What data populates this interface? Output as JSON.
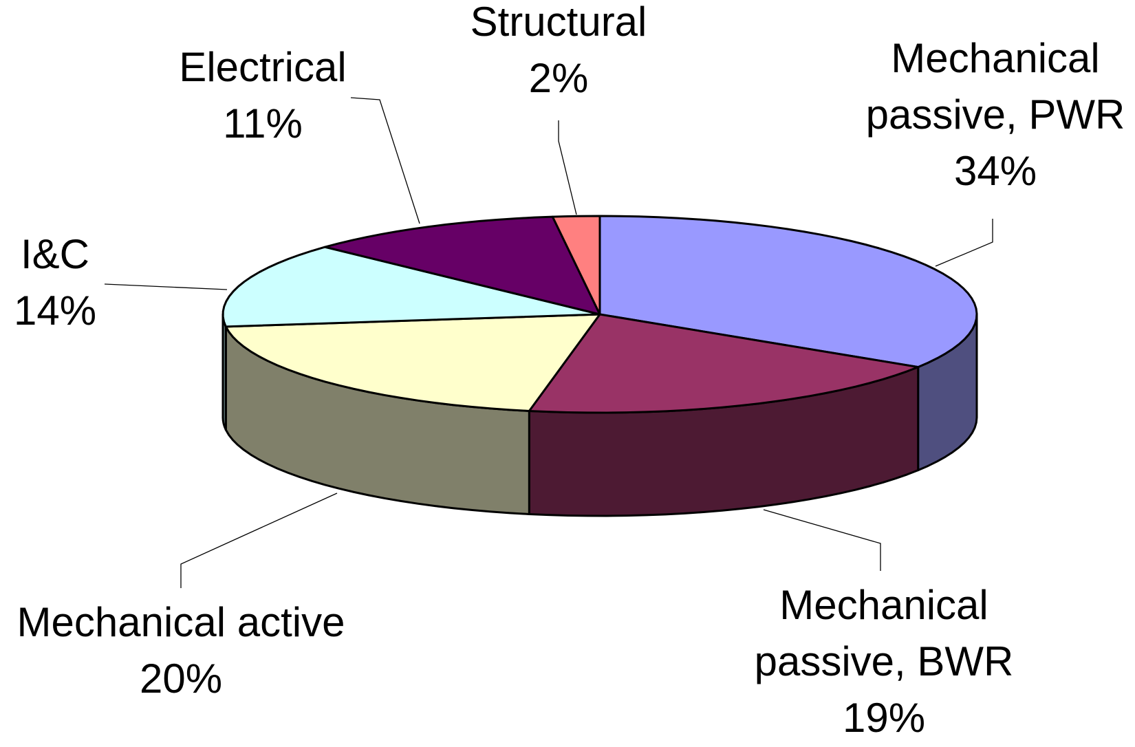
{
  "chart_data": {
    "type": "pie",
    "style": "3d",
    "title": "",
    "slices": [
      {
        "label": "Mechanical passive, PWR",
        "label_lines": [
          "Mechanical",
          "passive, PWR"
        ],
        "value": 34,
        "value_label": "34%",
        "color": "#9999FF",
        "side_color": "#4F4F7F"
      },
      {
        "label": "Mechanical passive, BWR",
        "label_lines": [
          "Mechanical",
          "passive, BWR"
        ],
        "value": 19,
        "value_label": "19%",
        "color": "#993366",
        "side_color": "#4D1A33"
      },
      {
        "label": "Mechanical active",
        "label_lines": [
          "Mechanical active"
        ],
        "value": 20,
        "value_label": "20%",
        "color": "#FFFFCC",
        "side_color": "#80806A"
      },
      {
        "label": "I&C",
        "label_lines": [
          "I&C"
        ],
        "value": 14,
        "value_label": "14%",
        "color": "#CCFFFF",
        "side_color": "#668080"
      },
      {
        "label": "Electrical",
        "label_lines": [
          "Electrical"
        ],
        "value": 11,
        "value_label": "11%",
        "color": "#660066",
        "side_color": "#330033"
      },
      {
        "label": "Structural",
        "label_lines": [
          "Structural"
        ],
        "value": 2,
        "value_label": "2%",
        "color": "#FF8080",
        "side_color": "#804040"
      }
    ]
  }
}
